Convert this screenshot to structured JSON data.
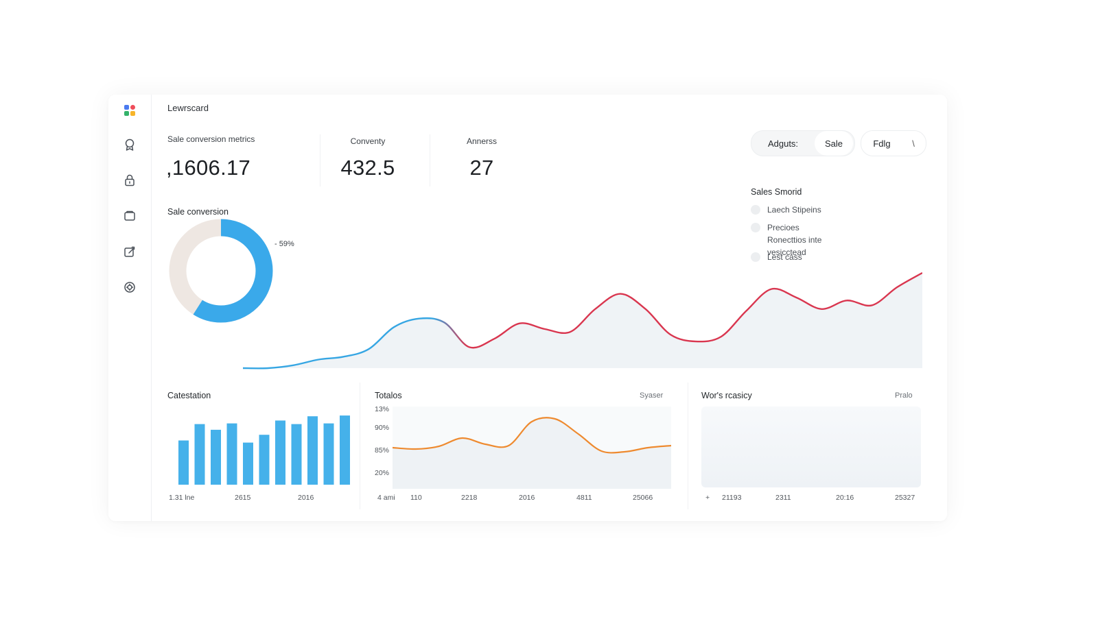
{
  "app": {
    "title": "Lewrscard"
  },
  "sidebar": {
    "icons": [
      "logo-icon",
      "badge-icon",
      "lock-icon",
      "folder-icon",
      "edit-icon",
      "settings-icon"
    ]
  },
  "metrics": [
    {
      "label": "Sale conversion metrics",
      "value": ",1606.17"
    },
    {
      "label": "Conventy",
      "value": "432.5"
    },
    {
      "label": "Annerss",
      "value": "27"
    }
  ],
  "toolbar": {
    "segments": [
      "Adguts:",
      "Sale"
    ],
    "filter_label": "Fdlg",
    "extra_label": "\\"
  },
  "legend": {
    "title": "Sales Smorid",
    "items": [
      "Laech Stipeins",
      "Precioes Ronecttios inte vesicctead",
      "Lest cass"
    ]
  },
  "donut": {
    "title": "Sale conversion",
    "percent_label": "- 59%",
    "value_fraction": 0.59,
    "color_main": "#3aa9ea",
    "color_rest": "#eee7e2"
  },
  "main_chart": {
    "color_start": "#36a6e3",
    "color_end": "#d9364f",
    "fill": "#eff3f6"
  },
  "bottom": {
    "bar_panel": {
      "title": "Catestation",
      "x_ticks": [
        "1.31 lne",
        "2615",
        "2016"
      ]
    },
    "line_panel": {
      "title": "Totalos",
      "right_label": "Syaser",
      "y_ticks": [
        "13%",
        "90%",
        "85%",
        "20%"
      ],
      "x_ticks": [
        "4 ami",
        "110",
        "2218",
        "2016",
        "4811",
        "25066"
      ]
    },
    "area_panel": {
      "title": "Wor's rcasicy",
      "right_label": "Pralo",
      "x_ticks": [
        "+",
        "21193",
        "2311",
        "20:16",
        "25327"
      ]
    }
  },
  "chart_data": [
    {
      "type": "pie",
      "title": "Sale conversion",
      "values": [
        59,
        41
      ],
      "annotations": [
        "- 59%"
      ]
    },
    {
      "type": "area",
      "series": [
        {
          "values": [
            0.0,
            0.0,
            0.03,
            0.09,
            0.12,
            0.2,
            0.43,
            0.52,
            0.48,
            0.22,
            0.31,
            0.47,
            0.41,
            0.38,
            0.62,
            0.78,
            0.62,
            0.35,
            0.28,
            0.33,
            0.6,
            0.83,
            0.74,
            0.62,
            0.71,
            0.66,
            0.85,
            1.0
          ]
        }
      ]
    },
    {
      "type": "bar",
      "title": "Catestation",
      "values": [
        62,
        85,
        77,
        86,
        59,
        70,
        90,
        85,
        96,
        86,
        97
      ],
      "x_tick_labels": [
        "1.31 lne",
        "2615",
        "2016"
      ],
      "ylim": [
        0,
        100
      ]
    },
    {
      "type": "line",
      "title": "Totalos",
      "values": [
        50,
        48,
        52,
        64,
        55,
        53,
        88,
        92,
        70,
        45,
        44,
        50,
        53
      ],
      "y_tick_labels": [
        "13%",
        "90%",
        "85%",
        "20%"
      ],
      "x_tick_labels": [
        "4 ami",
        "110",
        "2218",
        "2016",
        "4811",
        "25066"
      ],
      "color": "#ee8a2f"
    }
  ]
}
